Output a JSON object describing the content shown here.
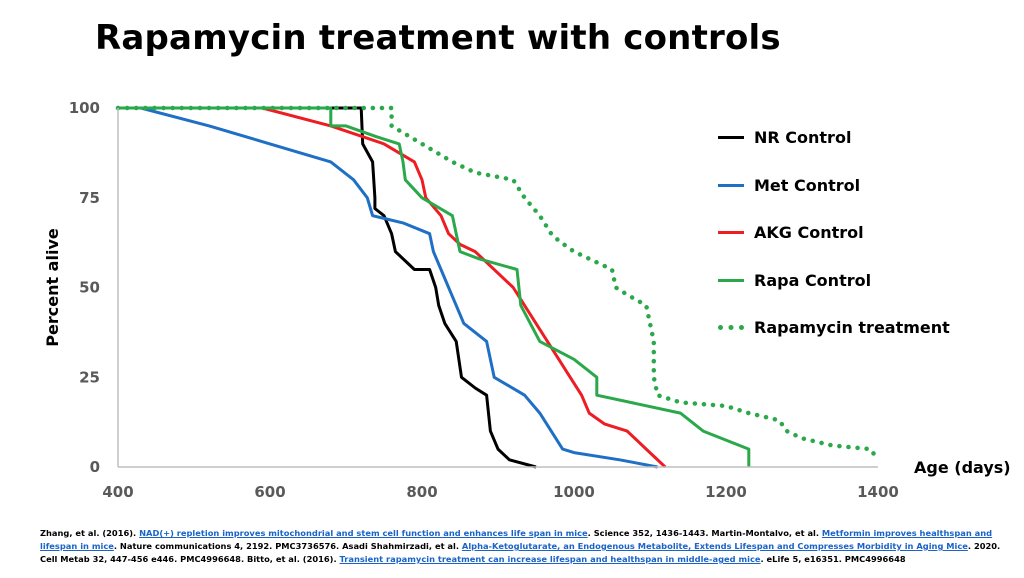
{
  "title": "Rapamycin treatment with controls",
  "chart_data": {
    "type": "line",
    "title": "Rapamycin treatment with controls",
    "xlabel": "Age (days)",
    "ylabel": "Percent alive",
    "xlim": [
      400,
      1400
    ],
    "ylim": [
      0,
      100
    ],
    "xticks": [
      400,
      600,
      800,
      1000,
      1200,
      1400
    ],
    "yticks": [
      0,
      25,
      50,
      75,
      100
    ],
    "grid": false,
    "legend_position": "right",
    "series": [
      {
        "name": "NR Control",
        "color": "#000000",
        "style": "solid",
        "points": [
          [
            400,
            100
          ],
          [
            720,
            100
          ],
          [
            722,
            90
          ],
          [
            735,
            85
          ],
          [
            738,
            75
          ],
          [
            738,
            72
          ],
          [
            750,
            70
          ],
          [
            760,
            65
          ],
          [
            765,
            60
          ],
          [
            790,
            55
          ],
          [
            810,
            55
          ],
          [
            818,
            50
          ],
          [
            822,
            45
          ],
          [
            830,
            40
          ],
          [
            845,
            35
          ],
          [
            852,
            25
          ],
          [
            870,
            22
          ],
          [
            885,
            20
          ],
          [
            890,
            10
          ],
          [
            900,
            5
          ],
          [
            915,
            2
          ],
          [
            950,
            0
          ]
        ]
      },
      {
        "name": "Met Control",
        "color": "#1f6fc5",
        "style": "solid",
        "points": [
          [
            400,
            100
          ],
          [
            430,
            100
          ],
          [
            520,
            95
          ],
          [
            600,
            90
          ],
          [
            680,
            85
          ],
          [
            710,
            80
          ],
          [
            728,
            75
          ],
          [
            735,
            70
          ],
          [
            775,
            68
          ],
          [
            810,
            65
          ],
          [
            815,
            60
          ],
          [
            825,
            55
          ],
          [
            835,
            50
          ],
          [
            845,
            45
          ],
          [
            855,
            40
          ],
          [
            885,
            35
          ],
          [
            895,
            25
          ],
          [
            935,
            20
          ],
          [
            955,
            15
          ],
          [
            970,
            10
          ],
          [
            985,
            5
          ],
          [
            1000,
            4
          ],
          [
            1060,
            2
          ],
          [
            1110,
            0
          ]
        ]
      },
      {
        "name": "AKG Control",
        "color": "#ee1c23",
        "style": "solid",
        "points": [
          [
            400,
            100
          ],
          [
            590,
            100
          ],
          [
            680,
            95
          ],
          [
            750,
            90
          ],
          [
            790,
            85
          ],
          [
            800,
            80
          ],
          [
            805,
            75
          ],
          [
            825,
            70
          ],
          [
            835,
            65
          ],
          [
            850,
            62
          ],
          [
            870,
            60
          ],
          [
            920,
            50
          ],
          [
            950,
            40
          ],
          [
            980,
            30
          ],
          [
            995,
            25
          ],
          [
            1010,
            20
          ],
          [
            1020,
            15
          ],
          [
            1040,
            12
          ],
          [
            1070,
            10
          ],
          [
            1095,
            5
          ],
          [
            1120,
            0
          ]
        ]
      },
      {
        "name": "Rapa Control",
        "color": "#2aa84a",
        "style": "solid",
        "points": [
          [
            400,
            100
          ],
          [
            680,
            100
          ],
          [
            680,
            95
          ],
          [
            700,
            95
          ],
          [
            740,
            92
          ],
          [
            770,
            90
          ],
          [
            775,
            85
          ],
          [
            778,
            80
          ],
          [
            800,
            75
          ],
          [
            840,
            70
          ],
          [
            850,
            60
          ],
          [
            875,
            58
          ],
          [
            925,
            55
          ],
          [
            930,
            45
          ],
          [
            955,
            35
          ],
          [
            1000,
            30
          ],
          [
            1030,
            25
          ],
          [
            1030,
            20
          ],
          [
            1140,
            15
          ],
          [
            1170,
            10
          ],
          [
            1230,
            5
          ],
          [
            1230,
            0
          ]
        ]
      },
      {
        "name": "Rapamycin treatment",
        "color": "#2aa84a",
        "style": "dotted",
        "points": [
          [
            400,
            100
          ],
          [
            760,
            100
          ],
          [
            760,
            95
          ],
          [
            800,
            90
          ],
          [
            840,
            85
          ],
          [
            870,
            82
          ],
          [
            920,
            80
          ],
          [
            935,
            75
          ],
          [
            955,
            70
          ],
          [
            970,
            65
          ],
          [
            980,
            63
          ],
          [
            1000,
            60
          ],
          [
            1050,
            55
          ],
          [
            1055,
            50
          ],
          [
            1070,
            48
          ],
          [
            1095,
            45
          ],
          [
            1100,
            40
          ],
          [
            1105,
            35
          ],
          [
            1105,
            25
          ],
          [
            1110,
            20
          ],
          [
            1140,
            18
          ],
          [
            1200,
            17
          ],
          [
            1230,
            15
          ],
          [
            1270,
            13
          ],
          [
            1280,
            10
          ],
          [
            1300,
            8
          ],
          [
            1340,
            6
          ],
          [
            1390,
            5
          ],
          [
            1400,
            2
          ]
        ]
      }
    ]
  },
  "references": [
    {
      "text": "Zhang, et al. (2016). ",
      "link": false
    },
    {
      "text": "NAD(+) repletion improves mitochondrial and stem cell function and enhances life span in mice",
      "link": true
    },
    {
      "text": ". Science 352, 1436-1443. Martin-Montalvo, et al. ",
      "link": false
    },
    {
      "text": "Metformin improves healthspan and lifespan in mice",
      "link": true
    },
    {
      "text": ". Nature communications 4, 2192. PMC3736576. Asadi Shahmirzadi, et al. ",
      "link": false
    },
    {
      "text": "Alpha-Ketoglutarate, an Endogenous Metabolite, Extends Lifespan and Compresses Morbidity in Aging Mice",
      "link": true
    },
    {
      "text": ". 2020. Cell Metab 32, 447-456 e446. PMC4996648. Bitto, et al. (2016). ",
      "link": false
    },
    {
      "text": "Transient rapamycin treatment can increase lifespan and healthspan in middle-aged mice",
      "link": true
    },
    {
      "text": ". eLife 5, e16351. PMC4996648",
      "link": false
    }
  ]
}
